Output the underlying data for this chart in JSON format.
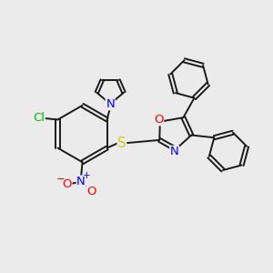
{
  "bg_color": "#ebebeb",
  "bond_color": "#1a1a1a",
  "bond_width": 1.4,
  "atom_colors": {
    "N": "#0000ff",
    "O": "#ff0000",
    "S": "#cccc00",
    "Cl": "#00bb00",
    "C": "#1a1a1a"
  },
  "font_size": 9.5,
  "xlim": [
    0,
    10
  ],
  "ylim": [
    0,
    10
  ]
}
